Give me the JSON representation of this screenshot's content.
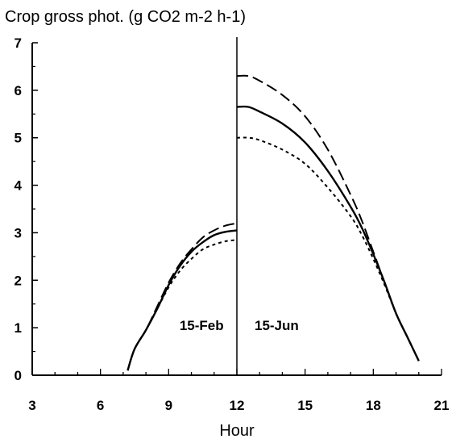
{
  "chart_data": {
    "type": "line",
    "title": "Crop gross phot. (g CO2 m-2 h-1)",
    "xlabel": "Hour",
    "ylabel": "",
    "xlim": [
      3,
      21
    ],
    "ylim": [
      0,
      7
    ],
    "x_ticks": [
      3,
      6,
      9,
      12,
      15,
      18,
      21
    ],
    "y_ticks": [
      0,
      1,
      2,
      3,
      4,
      5,
      6,
      7
    ],
    "grid": false,
    "legend": "none",
    "divider_x": 12,
    "annotations": [
      {
        "text": "15-Feb",
        "x": 10.45,
        "y": 0.95
      },
      {
        "text": "15-Jun",
        "x": 13.75,
        "y": 0.95
      }
    ],
    "series": [
      {
        "style": "dashed",
        "segments": [
          {
            "x": [
              7.2,
              7.5,
              8.0,
              8.5,
              9.0,
              9.5,
              10.0,
              10.5,
              11.0,
              11.5,
              12.0
            ],
            "y": [
              0.1,
              0.55,
              0.95,
              1.45,
              1.95,
              2.35,
              2.65,
              2.9,
              3.05,
              3.15,
              3.2
            ]
          },
          {
            "x": [
              12.0,
              12.5,
              13.0,
              14.0,
              15.0,
              16.0,
              17.0,
              17.5,
              18.0,
              18.5,
              19.0,
              19.5,
              20.0
            ],
            "y": [
              6.3,
              6.3,
              6.2,
              5.9,
              5.45,
              4.75,
              3.8,
              3.25,
              2.6,
              1.95,
              1.3,
              0.8,
              0.3
            ]
          }
        ]
      },
      {
        "style": "solid",
        "segments": [
          {
            "x": [
              7.2,
              7.5,
              8.0,
              8.5,
              9.0,
              9.5,
              10.0,
              10.5,
              11.0,
              11.5,
              12.0
            ],
            "y": [
              0.1,
              0.55,
              0.95,
              1.4,
              1.9,
              2.3,
              2.6,
              2.8,
              2.95,
              3.02,
              3.05
            ]
          },
          {
            "x": [
              12.0,
              12.5,
              13.0,
              14.0,
              15.0,
              16.0,
              17.0,
              17.5,
              18.0,
              18.5,
              19.0,
              19.5,
              20.0
            ],
            "y": [
              5.65,
              5.65,
              5.55,
              5.3,
              4.9,
              4.3,
              3.55,
              3.1,
              2.55,
              1.95,
              1.3,
              0.8,
              0.3
            ]
          }
        ]
      },
      {
        "style": "dotted",
        "segments": [
          {
            "x": [
              7.2,
              7.5,
              8.0,
              8.5,
              9.0,
              9.5,
              10.0,
              10.5,
              11.0,
              11.5,
              12.0
            ],
            "y": [
              0.1,
              0.55,
              0.95,
              1.4,
              1.85,
              2.2,
              2.45,
              2.65,
              2.75,
              2.82,
              2.85
            ]
          },
          {
            "x": [
              12.0,
              12.5,
              13.0,
              14.0,
              15.0,
              16.0,
              17.0,
              17.5,
              18.0,
              18.5,
              19.0,
              19.5,
              20.0
            ],
            "y": [
              5.0,
              5.0,
              4.95,
              4.75,
              4.45,
              3.95,
              3.35,
              2.95,
              2.45,
              1.9,
              1.3,
              0.8,
              0.3
            ]
          }
        ]
      }
    ]
  }
}
